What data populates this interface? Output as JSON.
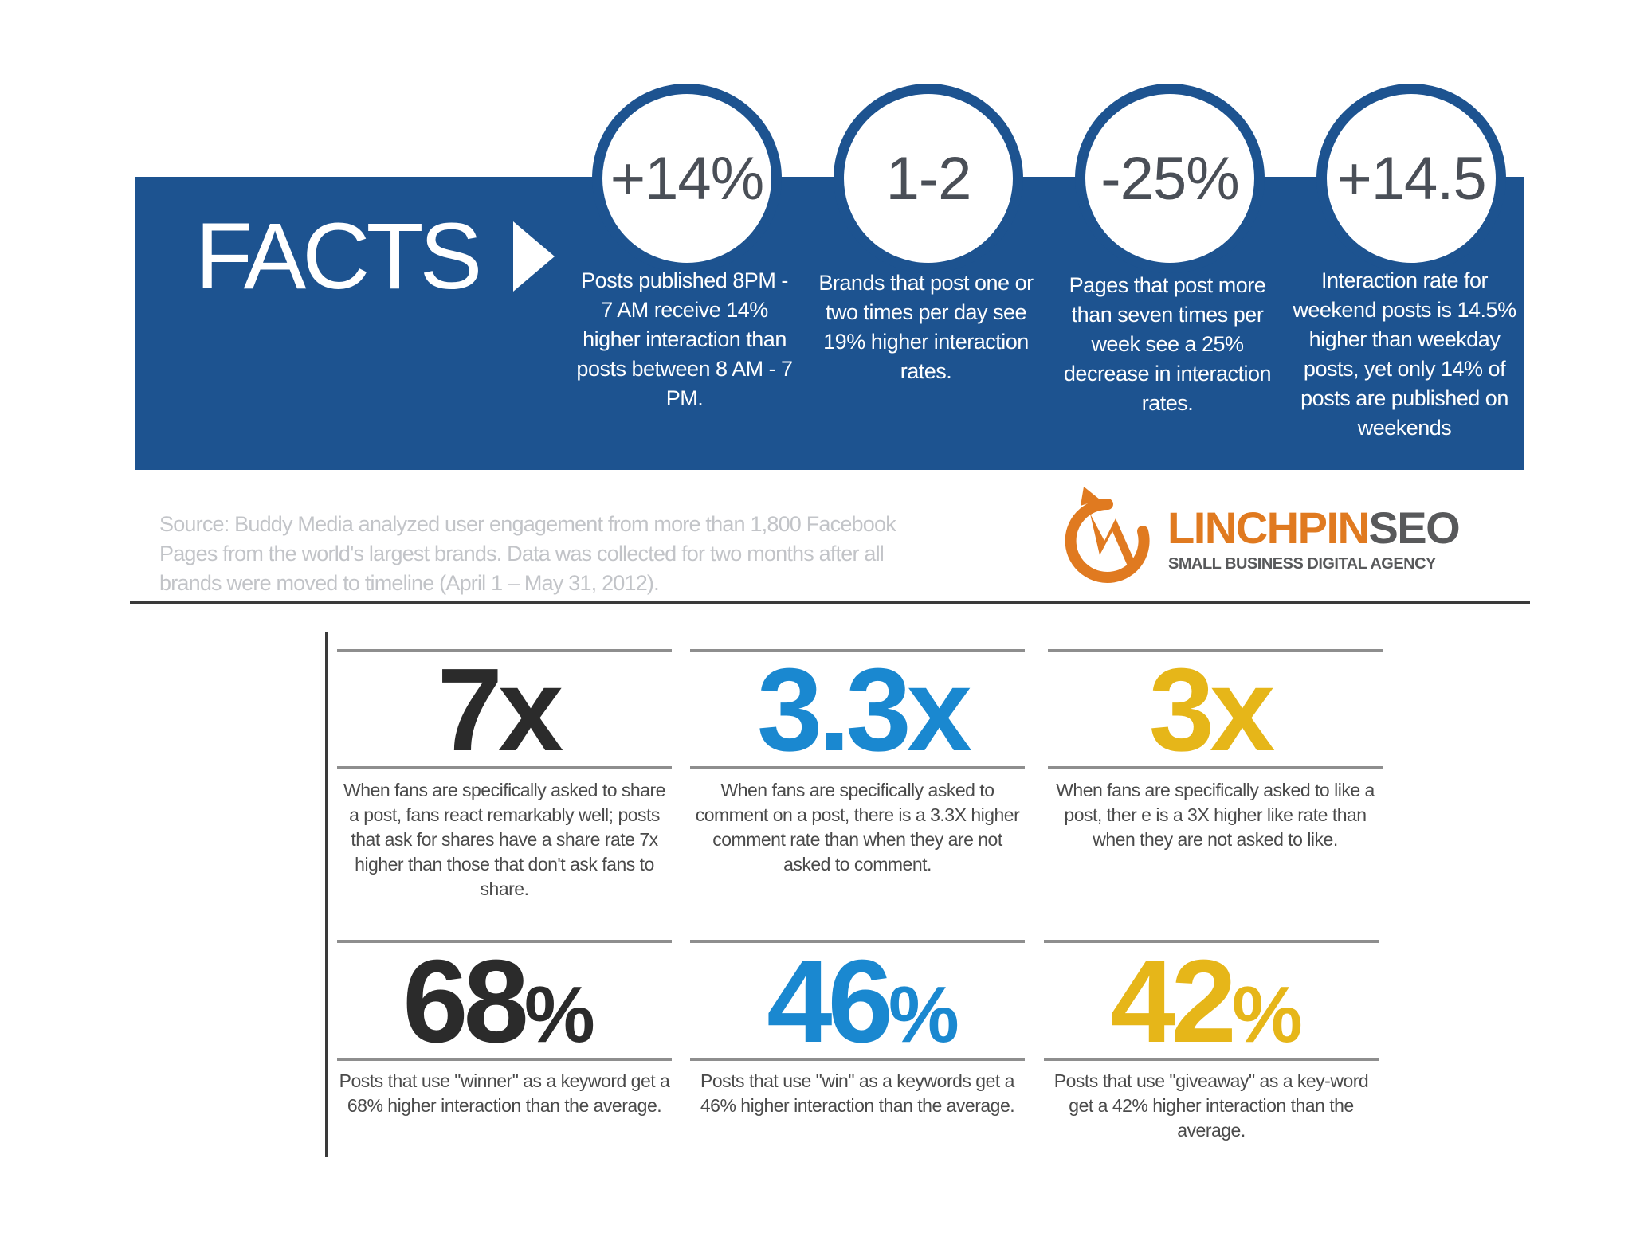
{
  "facts": {
    "title": "FACTS",
    "stats": [
      {
        "value": "+14%",
        "description": "Posts published 8PM - 7 AM receive 14% higher interaction than posts between 8 AM - 7 PM."
      },
      {
        "value": "1-2",
        "description": "Brands that post one or two times per day see 19% higher interaction rates."
      },
      {
        "value": "-25%",
        "description": "Pages that post more than seven times per week see a 25% decrease in interaction rates."
      },
      {
        "value": "+14.5",
        "description": "Interaction rate for weekend posts is 14.5% higher than weekday posts, yet only 14% of posts are published on weekends"
      }
    ]
  },
  "source": "Source: Buddy Media analyzed user engagement from more than 1,800 Facebook Pages from the world's largest brands. Data was collected for two months after all brands were moved to timeline (April 1 – May 31, 2012).",
  "logo": {
    "name_part1": "LINCHPIN",
    "name_part2": "SEO",
    "tagline": "SMALL BUSINESS DIGITAL AGENCY",
    "icon": "lightning-bolt-circle-icon"
  },
  "grid": [
    {
      "number": "7x",
      "suffix": "",
      "color": "#2b2b2b",
      "description": "When fans are specifically asked to share a post, fans react remarkably well; posts that ask for shares have a share rate 7x higher than those that don't ask fans to share."
    },
    {
      "number": "3.3x",
      "suffix": "",
      "color": "#1a88d0",
      "description": "When fans are specifically asked to comment on a post, there is a 3.3X higher comment rate than when they are not asked to comment."
    },
    {
      "number": "3x",
      "suffix": "",
      "color": "#e6b619",
      "description": "When fans are specifically asked to like a post, ther e is a 3X higher like rate than when they are not asked to like."
    },
    {
      "number": "68",
      "suffix": "%",
      "color": "#2b2b2b",
      "description": "Posts that use \"winner\" as a keyword get a 68% higher interaction than the average."
    },
    {
      "number": "46",
      "suffix": "%",
      "color": "#1a88d0",
      "description": "Posts that use \"win\" as a keywords get a 46% higher interaction than the average."
    },
    {
      "number": "42",
      "suffix": "%",
      "color": "#e6b619",
      "description": "Posts that use \"giveaway\" as a key-word get a 42% higher interaction than the average."
    }
  ],
  "colors": {
    "banner": "#1d5390",
    "logo_orange": "#e07a20",
    "logo_gray": "#58595b"
  }
}
